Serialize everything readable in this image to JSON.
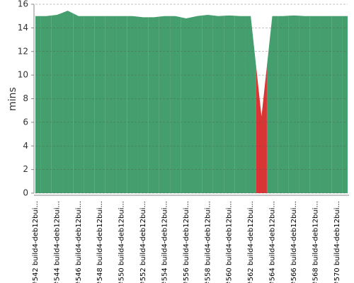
{
  "chart_data": {
    "type": "area",
    "y_label": "mins",
    "categories": [
      "#542 build4-deb12bui...",
      null,
      "#544 build4-deb12bui...",
      null,
      "#546 build4-deb12bui...",
      null,
      "#548 build4-deb12bui...",
      null,
      "#550 build4-deb12bui...",
      null,
      "#552 build4-deb12bui...",
      null,
      "#554 build4-deb12bui...",
      null,
      "#556 build4-deb12bui...",
      null,
      "#558 build4-deb12bui...",
      null,
      "#560 build4-deb12bui...",
      null,
      "#562 build4-deb12bui...",
      null,
      "#564 build4-deb12bui...",
      null,
      "#566 build4-deb12bui...",
      null,
      "#568 build4-deb12bui...",
      null,
      "#570 build4-deb12bui...",
      null
    ],
    "values": [
      15.0,
      15.0,
      15.1,
      15.45,
      15.0,
      15.0,
      15.0,
      15.0,
      15.0,
      15.0,
      14.9,
      14.9,
      15.0,
      15.0,
      14.8,
      15.0,
      15.1,
      15.0,
      15.05,
      15.0,
      15.0,
      6.5,
      15.0,
      15.0,
      15.05,
      15.0,
      15.0,
      15.0,
      15.0,
      15.0
    ],
    "point_colors": [
      "#459e6e",
      "#459e6e",
      "#459e6e",
      "#459e6e",
      "#459e6e",
      "#459e6e",
      "#459e6e",
      "#459e6e",
      "#459e6e",
      "#459e6e",
      "#459e6e",
      "#459e6e",
      "#459e6e",
      "#459e6e",
      "#459e6e",
      "#459e6e",
      "#459e6e",
      "#459e6e",
      "#459e6e",
      "#459e6e",
      "#459e6e",
      "#d93535",
      "#459e6e",
      "#459e6e",
      "#459e6e",
      "#459e6e",
      "#459e6e",
      "#459e6e",
      "#459e6e",
      "#459e6e"
    ],
    "ylim": [
      0,
      16
    ],
    "yticks": [
      0,
      2,
      4,
      6,
      8,
      10,
      12,
      14,
      16
    ],
    "grid": true
  }
}
